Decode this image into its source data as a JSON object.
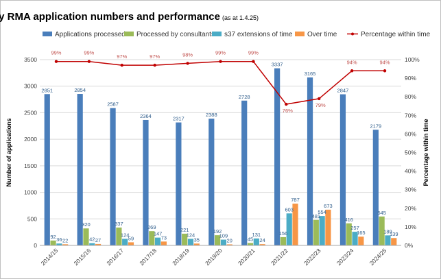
{
  "chart_data": {
    "type": "bar",
    "title": "Yearly RMA application numbers and performance",
    "subtitle": "(as at 1.4.25)",
    "categories": [
      "2014/15",
      "2015/16",
      "2016/17",
      "2017/18",
      "2018/19",
      "2019/20",
      "2020/21",
      "2021/22",
      "2022/23",
      "2023/24",
      "2024/25"
    ],
    "series": [
      {
        "name": "Applications processed",
        "color": "#4a7ebb",
        "label_color": "#2e5c8a",
        "values": [
          2851,
          2854,
          2587,
          2364,
          2317,
          2388,
          2728,
          3337,
          3165,
          2847,
          2179
        ]
      },
      {
        "name": "Processed by consultants",
        "color": "#9bbb59",
        "label_color": "#2e5c8a",
        "values": [
          92,
          320,
          337,
          269,
          221,
          192,
          45,
          156,
          481,
          416,
          545
        ]
      },
      {
        "name": "s37 extensions of time",
        "color": "#4bacc6",
        "label_color": "#2e5c8a",
        "values": [
          36,
          42,
          124,
          147,
          124,
          109,
          131,
          603,
          554,
          257,
          189
        ]
      },
      {
        "name": "Over time",
        "color": "#f79646",
        "label_color": "#2e5c8a",
        "values": [
          22,
          27,
          59,
          73,
          35,
          20,
          24,
          787,
          673,
          165,
          139
        ]
      }
    ],
    "line_series": {
      "name": "Percentage within time",
      "color": "#c00000",
      "values": [
        99,
        99,
        97,
        97,
        98,
        99,
        99,
        76,
        79,
        94,
        94
      ],
      "labels": [
        "99%",
        "99%",
        "97%",
        "97%",
        "98%",
        "99%",
        "99%",
        "76%",
        "79%",
        "94%",
        "94%"
      ]
    },
    "ylabel": "Number of applications",
    "y2label": "Percentage within time",
    "ylim": [
      0,
      3500
    ],
    "y2lim": [
      0,
      100
    ],
    "yticks": [
      0,
      500,
      1000,
      1500,
      2000,
      2500,
      3000,
      3500
    ],
    "y2ticks": [
      0,
      10,
      20,
      30,
      40,
      50,
      60,
      70,
      80,
      90,
      100
    ],
    "y2tick_labels": [
      "0%",
      "10%",
      "20%",
      "30%",
      "40%",
      "50%",
      "60%",
      "70%",
      "80%",
      "90%",
      "100%"
    ],
    "legend_position": "top",
    "grid": true
  }
}
